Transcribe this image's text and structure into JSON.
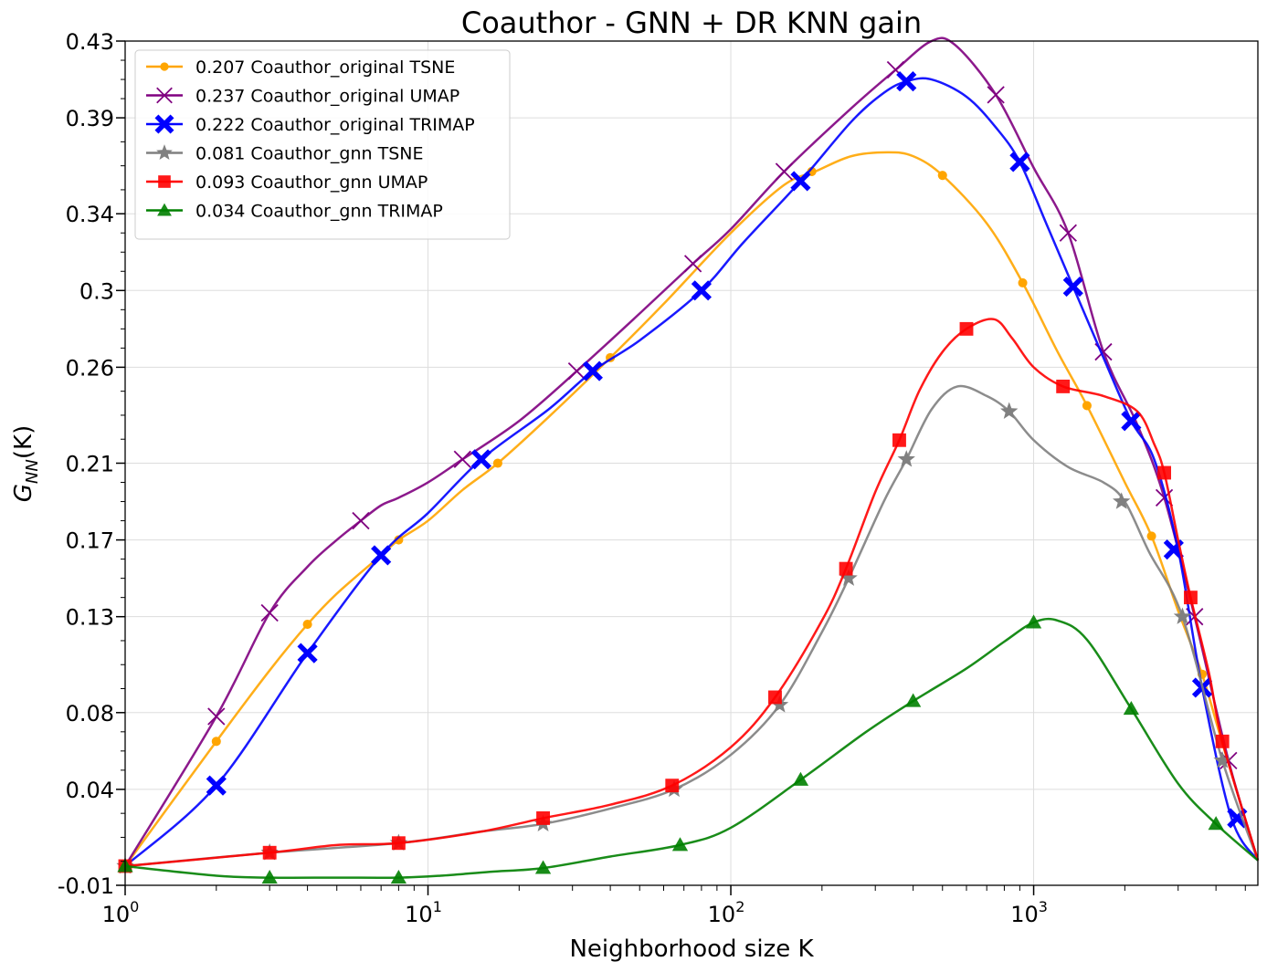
{
  "chart_data": {
    "type": "line",
    "title": "Coauthor - GNN + DR KNN gain",
    "xlabel": "Neighborhood size K",
    "ylabel": "G_NN(K)",
    "xscale": "log",
    "xlim": [
      1,
      5500
    ],
    "ylim": [
      -0.01,
      0.43
    ],
    "x_ticks": [
      1,
      10,
      100,
      1000
    ],
    "x_tick_labels": [
      {
        "base": "10",
        "exp": "0"
      },
      {
        "base": "10",
        "exp": "1"
      },
      {
        "base": "10",
        "exp": "2"
      },
      {
        "base": "10",
        "exp": "3"
      }
    ],
    "y_ticks": [
      -0.01,
      0.04,
      0.08,
      0.13,
      0.17,
      0.21,
      0.26,
      0.3,
      0.34,
      0.39,
      0.43
    ],
    "y_tick_labels": [
      "-0.01",
      "0.04",
      "0.08",
      "0.13",
      "0.17",
      "0.21",
      "0.26",
      "0.3",
      "0.34",
      "0.39",
      "0.43"
    ],
    "grid": true,
    "legend_position": "top-left",
    "series": [
      {
        "name": "0.207 Coauthor_original TSNE",
        "color": "#FFA500",
        "marker": "circle",
        "x": [
          1,
          2,
          3,
          4,
          5,
          7,
          8,
          10,
          13,
          17,
          25,
          40,
          60,
          100,
          150,
          190,
          250,
          330,
          400,
          500,
          700,
          920,
          1200,
          1500,
          2000,
          2450,
          3000,
          3600,
          4200,
          5500
        ],
        "y": [
          0.0,
          0.065,
          0.102,
          0.126,
          0.142,
          0.162,
          0.17,
          0.18,
          0.196,
          0.21,
          0.234,
          0.265,
          0.293,
          0.33,
          0.355,
          0.362,
          0.37,
          0.372,
          0.37,
          0.36,
          0.335,
          0.304,
          0.268,
          0.24,
          0.2,
          0.172,
          0.133,
          0.1,
          0.064,
          0.003
        ],
        "marker_x": [
          2,
          4,
          8,
          17,
          40,
          185,
          500,
          920,
          1500,
          2450,
          3600
        ],
        "marker_y": [
          0.065,
          0.126,
          0.17,
          0.21,
          0.265,
          0.362,
          0.36,
          0.304,
          0.24,
          0.172,
          0.1
        ]
      },
      {
        "name": "0.237 Coauthor_original UMAP",
        "color": "#800080",
        "marker": "x",
        "x": [
          1,
          2,
          3,
          4,
          5,
          6,
          7,
          8,
          10,
          13,
          20,
          31,
          50,
          75,
          100,
          150,
          250,
          350,
          460,
          550,
          750,
          1000,
          1300,
          1700,
          2200,
          2700,
          3400,
          4400,
          5500
        ],
        "y": [
          0.0,
          0.078,
          0.132,
          0.156,
          0.17,
          0.18,
          0.188,
          0.192,
          0.2,
          0.212,
          0.232,
          0.258,
          0.288,
          0.314,
          0.332,
          0.362,
          0.395,
          0.415,
          0.43,
          0.428,
          0.402,
          0.364,
          0.33,
          0.268,
          0.23,
          0.192,
          0.13,
          0.055,
          0.003
        ],
        "marker_x": [
          2,
          3,
          6,
          13,
          31,
          75,
          150,
          350,
          750,
          1300,
          1700,
          2700,
          3400,
          4400
        ],
        "marker_y": [
          0.078,
          0.132,
          0.18,
          0.212,
          0.258,
          0.314,
          0.362,
          0.415,
          0.402,
          0.33,
          0.268,
          0.192,
          0.13,
          0.055
        ]
      },
      {
        "name": "0.222 Coauthor_original TRIMAP",
        "color": "#0000FF",
        "marker": "X",
        "x": [
          1,
          2,
          4,
          7,
          10,
          15,
          25,
          35,
          50,
          80,
          110,
          170,
          250,
          320,
          380,
          460,
          600,
          750,
          900,
          1100,
          1350,
          1700,
          2100,
          2500,
          3000,
          3600,
          4500,
          5500
        ],
        "y": [
          0.0,
          0.042,
          0.111,
          0.162,
          0.184,
          0.212,
          0.238,
          0.258,
          0.274,
          0.3,
          0.325,
          0.357,
          0.388,
          0.403,
          0.409,
          0.41,
          0.401,
          0.385,
          0.367,
          0.335,
          0.302,
          0.265,
          0.232,
          0.212,
          0.165,
          0.093,
          0.025,
          0.003
        ],
        "marker_x": [
          2,
          4,
          7,
          15,
          35,
          80,
          170,
          380,
          900,
          1350,
          2100,
          2900,
          3600,
          4700
        ],
        "marker_y": [
          0.042,
          0.111,
          0.162,
          0.212,
          0.258,
          0.3,
          0.357,
          0.409,
          0.367,
          0.302,
          0.232,
          0.165,
          0.093,
          0.025
        ]
      },
      {
        "name": "0.081 Coauthor_gnn TSNE",
        "color": "#808080",
        "marker": "star",
        "x": [
          1,
          3,
          8,
          15,
          24,
          40,
          65,
          100,
          145,
          200,
          245,
          320,
          380,
          460,
          560,
          700,
          830,
          1000,
          1300,
          1700,
          2000,
          2400,
          3100,
          4200,
          5500
        ],
        "y": [
          0.0,
          0.007,
          0.012,
          0.018,
          0.022,
          0.03,
          0.04,
          0.058,
          0.084,
          0.122,
          0.15,
          0.19,
          0.212,
          0.238,
          0.25,
          0.245,
          0.237,
          0.222,
          0.208,
          0.2,
          0.19,
          0.164,
          0.13,
          0.055,
          0.003
        ],
        "marker_x": [
          1,
          3,
          8,
          24,
          65,
          145,
          245,
          380,
          830,
          1950,
          3100,
          4200
        ],
        "marker_y": [
          0.0,
          0.007,
          0.012,
          0.022,
          0.04,
          0.084,
          0.15,
          0.212,
          0.237,
          0.19,
          0.13,
          0.055
        ]
      },
      {
        "name": "0.093 Coauthor_gnn UMAP",
        "color": "#FF0000",
        "marker": "square",
        "x": [
          1,
          3,
          5,
          8,
          15,
          24,
          40,
          64,
          100,
          140,
          200,
          240,
          300,
          360,
          420,
          500,
          600,
          740,
          850,
          1000,
          1250,
          1700,
          2200,
          2500,
          2700,
          3000,
          3300,
          3800,
          4200,
          5500
        ],
        "y": [
          0.0,
          0.007,
          0.011,
          0.012,
          0.018,
          0.025,
          0.032,
          0.042,
          0.062,
          0.088,
          0.128,
          0.155,
          0.195,
          0.222,
          0.248,
          0.268,
          0.28,
          0.285,
          0.275,
          0.26,
          0.25,
          0.245,
          0.237,
          0.22,
          0.205,
          0.17,
          0.14,
          0.1,
          0.065,
          0.003
        ],
        "marker_x": [
          1,
          3,
          8,
          24,
          64,
          140,
          240,
          360,
          600,
          1250,
          2700,
          3300,
          4200
        ],
        "marker_y": [
          0.0,
          0.007,
          0.012,
          0.025,
          0.042,
          0.088,
          0.155,
          0.222,
          0.28,
          0.25,
          0.205,
          0.14,
          0.065
        ]
      },
      {
        "name": "0.034 Coauthor_gnn TRIMAP",
        "color": "#008000",
        "marker": "triangle",
        "x": [
          1,
          2,
          3,
          5,
          8,
          11,
          16,
          24,
          40,
          68,
          100,
          170,
          280,
          400,
          600,
          800,
          1000,
          1200,
          1500,
          2100,
          3000,
          4000,
          5500
        ],
        "y": [
          0.0,
          -0.005,
          -0.006,
          -0.006,
          -0.006,
          -0.005,
          -0.003,
          -0.001,
          0.005,
          0.011,
          0.02,
          0.045,
          0.07,
          0.086,
          0.103,
          0.117,
          0.127,
          0.128,
          0.118,
          0.082,
          0.043,
          0.022,
          0.003
        ],
        "marker_x": [
          1,
          3,
          8,
          24,
          68,
          170,
          400,
          1000,
          2100,
          4000
        ],
        "marker_y": [
          0.0,
          -0.006,
          -0.006,
          -0.001,
          0.011,
          0.045,
          0.086,
          0.127,
          0.082,
          0.022
        ]
      }
    ]
  }
}
